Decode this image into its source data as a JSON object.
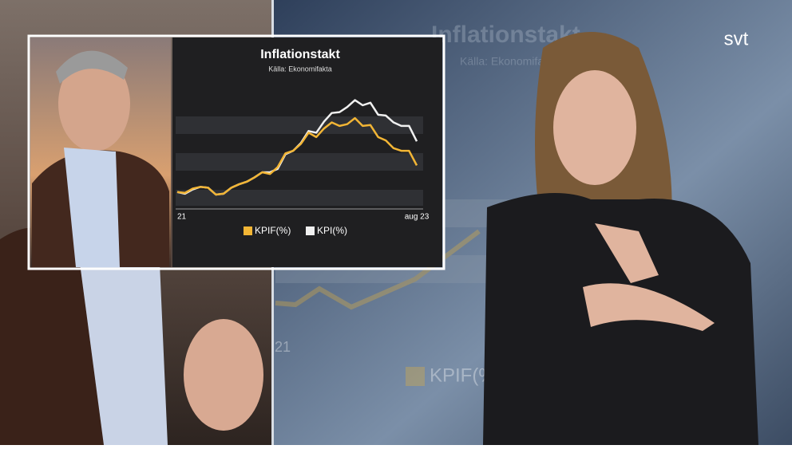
{
  "logo": "svt",
  "chart_data": {
    "type": "line",
    "title": "Inflationstakt",
    "subtitle": "Källa: Ekonomifakta",
    "categories": [
      "21",
      null,
      null,
      null,
      null,
      null,
      null,
      null,
      null,
      null,
      null,
      null,
      null,
      null,
      null,
      null,
      null,
      null,
      null,
      null,
      null,
      null,
      null,
      null,
      null,
      null,
      null,
      null,
      null,
      null,
      null,
      "aug 23"
    ],
    "series": [
      {
        "name": "KPIF(%)",
        "color": "#f2b535",
        "values": [
          1.6,
          1.5,
          2.0,
          2.2,
          2.1,
          1.3,
          1.4,
          2.1,
          2.5,
          2.8,
          3.3,
          3.9,
          3.7,
          4.5,
          6.1,
          6.4,
          7.2,
          8.5,
          8.0,
          9.0,
          9.7,
          9.3,
          9.5,
          10.2,
          9.3,
          9.4,
          8.0,
          7.6,
          6.7,
          6.4,
          6.4,
          4.7
        ]
      },
      {
        "name": "KPI(%)",
        "color": "#f0f0f0",
        "values": [
          1.6,
          1.4,
          1.9,
          2.2,
          2.1,
          1.3,
          1.4,
          2.1,
          2.5,
          2.8,
          3.3,
          3.9,
          3.9,
          4.3,
          6.0,
          6.4,
          7.3,
          8.7,
          8.5,
          9.8,
          10.8,
          10.9,
          11.5,
          12.3,
          11.7,
          12.0,
          10.6,
          10.5,
          9.7,
          9.3,
          9.3,
          7.5
        ]
      }
    ],
    "ylim": [
      0,
      13
    ]
  }
}
